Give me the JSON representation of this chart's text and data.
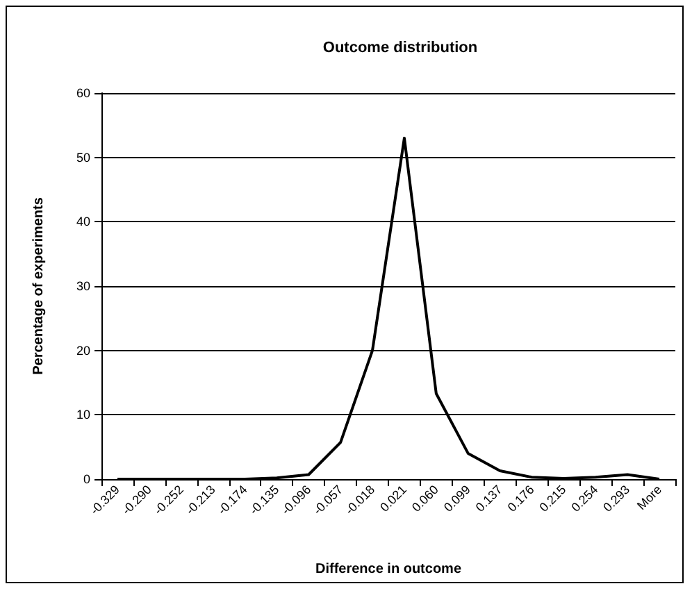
{
  "chart_data": {
    "type": "line",
    "title": "Outcome distribution",
    "xlabel": "Difference in outcome",
    "ylabel": "Percentage of experiments",
    "categories": [
      "-0.329",
      "-0.290",
      "-0.252",
      "-0.213",
      "-0.174",
      "-0.135",
      "-0.096",
      "-0.057",
      "-0.018",
      "0.021",
      "0.060",
      "0.099",
      "0.137",
      "0.176",
      "0.215",
      "0.254",
      "0.293",
      "More"
    ],
    "series": [
      {
        "color": "#000000",
        "values": [
          0,
          0,
          0,
          0,
          0,
          0.2,
          0.7,
          5.7,
          20,
          53,
          13.3,
          4,
          1.3,
          0.3,
          0.1,
          0.3,
          0.7,
          0
        ]
      }
    ],
    "ylim": [
      0,
      60
    ],
    "yticks": [
      0,
      10,
      20,
      30,
      40,
      50,
      60
    ],
    "grid": "y",
    "marker": "none",
    "line_style": "solid"
  }
}
